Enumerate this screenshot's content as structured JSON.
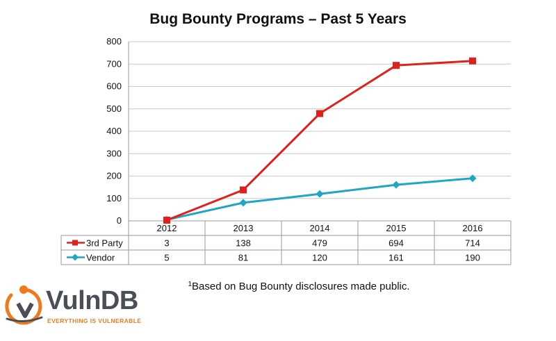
{
  "chart_data": {
    "type": "line",
    "title": "Bug Bounty Programs – Past 5 Years",
    "categories": [
      "2012",
      "2013",
      "2014",
      "2015",
      "2016"
    ],
    "series": [
      {
        "name": "3rd Party",
        "values": [
          3,
          138,
          479,
          694,
          714
        ],
        "color": "#e0201a",
        "marker": "square"
      },
      {
        "name": "Vendor",
        "values": [
          5,
          81,
          120,
          161,
          190
        ],
        "color": "#1fa6c4",
        "marker": "diamond"
      }
    ],
    "ylim": [
      0,
      800
    ],
    "yticks": [
      "0",
      "100",
      "200",
      "300",
      "400",
      "500",
      "600",
      "700",
      "800"
    ],
    "grid": true,
    "legend": "data-table",
    "data_table": true
  },
  "footnote": {
    "marker": "1",
    "text": "Based on Bug Bounty disclosures made public."
  },
  "logo": {
    "name": "VulnDB",
    "tagline": "EVERYTHING IS VULNERABLE",
    "accent_color": "#f07a1a",
    "text_color": "#4a4f57"
  }
}
